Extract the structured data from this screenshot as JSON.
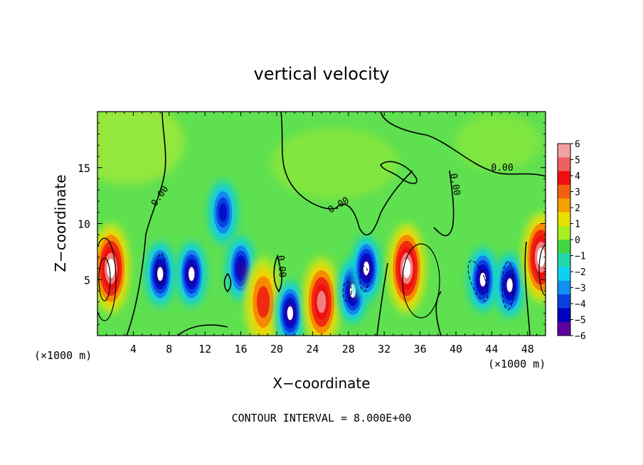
{
  "chart_data": {
    "type": "heatmap",
    "title": "vertical velocity",
    "xlabel": "X−coordinate",
    "ylabel": "Z−coordinate",
    "x_unit_left": "(×1000 m)",
    "x_unit_right": "(×1000 m)",
    "footer": "CONTOUR INTERVAL = 8.000E+00",
    "xlim": [
      0,
      50
    ],
    "ylim": [
      0,
      20
    ],
    "x_ticks": [
      "4",
      "8",
      "12",
      "16",
      "20",
      "24",
      "28",
      "32",
      "36",
      "40",
      "44",
      "48"
    ],
    "y_ticks": [
      "5",
      "10",
      "15"
    ],
    "contour_label": "0.00",
    "colorbar": {
      "labels": [
        "6",
        "5",
        "4",
        "3",
        "2",
        "1",
        "0",
        "−1",
        "−2",
        "−3",
        "−4",
        "−5",
        "−6"
      ],
      "colors": [
        "#f2a0a0",
        "#f06060",
        "#ee1010",
        "#f06010",
        "#f5a000",
        "#e8e000",
        "#a8ee20",
        "#40d840",
        "#22d8a8",
        "#10d0f0",
        "#1090f0",
        "#0a40e0",
        "#0000c0",
        "#6000a0"
      ]
    },
    "features": [
      {
        "kind": "updraft",
        "x": 1.5,
        "z": 6,
        "strength": 6
      },
      {
        "kind": "downdraft",
        "x": 7,
        "z": 5.5,
        "strength": -6
      },
      {
        "kind": "downdraft",
        "x": 10.5,
        "z": 5.5,
        "strength": -6
      },
      {
        "kind": "downdraft",
        "x": 14,
        "z": 11,
        "strength": -4
      },
      {
        "kind": "downdraft",
        "x": 16,
        "z": 6,
        "strength": -5
      },
      {
        "kind": "updraft",
        "x": 18.5,
        "z": 3,
        "strength": 3
      },
      {
        "kind": "downdraft",
        "x": 21.5,
        "z": 2,
        "strength": -6
      },
      {
        "kind": "updraft",
        "x": 25,
        "z": 3,
        "strength": 5
      },
      {
        "kind": "downdraft",
        "x": 28.5,
        "z": 4,
        "strength": -6
      },
      {
        "kind": "downdraft",
        "x": 30,
        "z": 6,
        "strength": -6
      },
      {
        "kind": "updraft",
        "x": 34.5,
        "z": 6,
        "strength": 6
      },
      {
        "kind": "downdraft",
        "x": 43,
        "z": 5,
        "strength": -6
      },
      {
        "kind": "downdraft",
        "x": 46,
        "z": 4.5,
        "strength": -6
      },
      {
        "kind": "updraft",
        "x": 49.5,
        "z": 7,
        "strength": 6
      }
    ]
  }
}
